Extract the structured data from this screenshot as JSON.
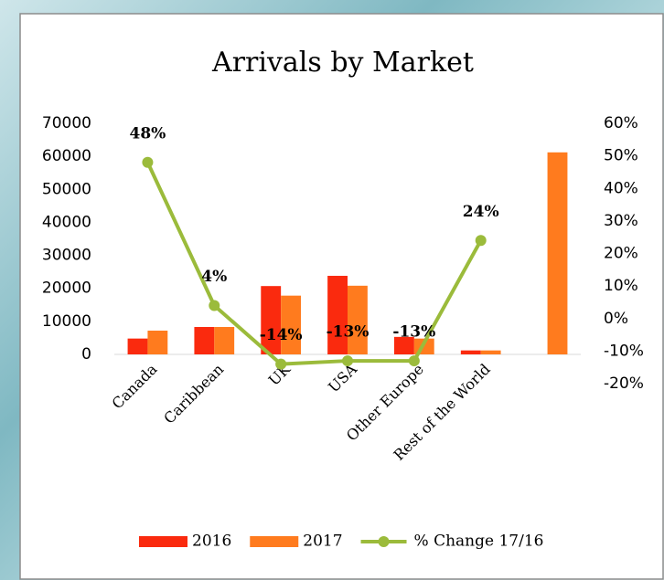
{
  "chart_data": {
    "type": "bar-line",
    "title": "Arrivals by Market",
    "categories": [
      "Canada",
      "Caribbean",
      "UK",
      "USA",
      "Other Europe",
      "Rest of the World",
      null
    ],
    "series": [
      {
        "name": "2016",
        "color": "#fa2a0e",
        "values": [
          4800,
          8300,
          20700,
          23800,
          5300,
          1200,
          null
        ]
      },
      {
        "name": "2017",
        "color": "#ff7b1e",
        "values": [
          7200,
          8300,
          17800,
          20800,
          4800,
          1200,
          61200
        ]
      },
      {
        "name": "% Change 17/16",
        "color": "#9bbb3b",
        "axis": "y2",
        "values": [
          48,
          4,
          -14,
          -13,
          -13,
          24,
          null
        ],
        "value_labels": [
          "48%",
          "4%",
          "-14%",
          "-13%",
          "-13%",
          "24%",
          null
        ]
      }
    ],
    "ylim": [
      0,
      70000
    ],
    "yticks": [
      0,
      10000,
      20000,
      30000,
      40000,
      50000,
      60000,
      70000
    ],
    "y2lim": [
      -20,
      60
    ],
    "y2ticks": [
      {
        "value": -20,
        "label": "-20%"
      },
      {
        "value": -10,
        "label": "-10%"
      },
      {
        "value": 0,
        "label": "0%"
      },
      {
        "value": 10,
        "label": "10%"
      },
      {
        "value": 20,
        "label": "20%"
      },
      {
        "value": 30,
        "label": "30%"
      },
      {
        "value": 40,
        "label": "40%"
      },
      {
        "value": 50,
        "label": "50%"
      },
      {
        "value": 60,
        "label": "60%"
      }
    ],
    "legend": "bottom",
    "grid": false
  }
}
